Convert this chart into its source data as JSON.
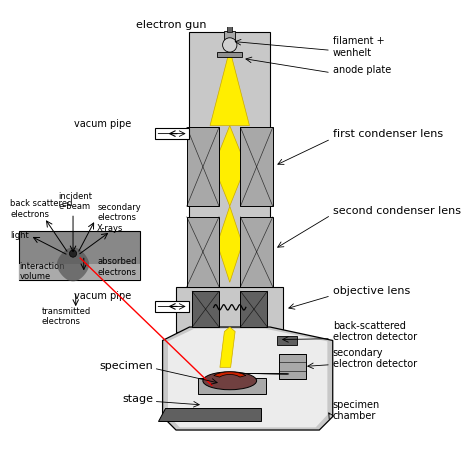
{
  "background_color": "#ffffff",
  "light_gray": "#c8c8c8",
  "mid_gray": "#a8a8a8",
  "dark_gray": "#606060",
  "col_inner": "#e0e0e0",
  "yellow": "#ffee00",
  "red_dark": "#8b0000",
  "red_bright": "#cc2200",
  "labels": {
    "electron_gun": "electron gun",
    "filament_wenhelt": "filament +\nwenhelt",
    "anode_plate": "anode plate",
    "first_condenser": "first condenser lens",
    "second_condenser": "second condenser lens",
    "objective_lens": "objective lens",
    "back_scattered_detector": "back-scattered\nelectron detector",
    "secondary_detector": "secondary\nelectron detector",
    "specimen_chamber": "specimen\nchamber",
    "vacum_pipe_top": "vacum pipe",
    "vacum_pipe_bot": "vacum pipe",
    "specimen": "specimen",
    "stage": "stage",
    "incident_ebeam": "incident\ne-beam",
    "back_scattered": "back scattered\nelectrons",
    "secondary_electrons": "secondary\nelectrons",
    "xrays": "X-rays",
    "light": "light",
    "absorbed_electrons": "absorbed\nelectrons",
    "interaction_volume": "interaction\nvolume",
    "transmitted_electrons": "transmitted\nelectrons"
  }
}
